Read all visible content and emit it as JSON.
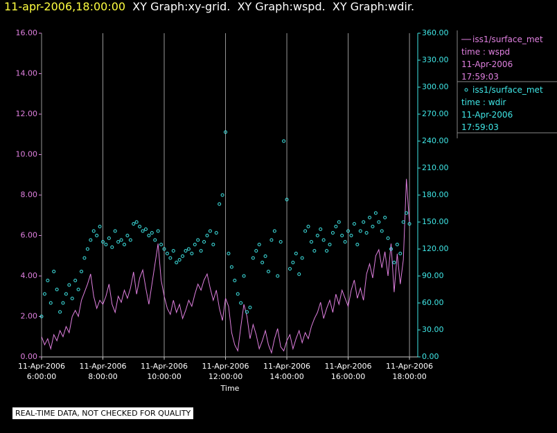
{
  "chart_data": {
    "type": "line",
    "title": "11-apr-2006,18:00:00",
    "subtitle": "XY Graph:xy-grid.  XY Graph:wspd.  XY Graph:wdir.",
    "x_label": "Time",
    "note": "REAL-TIME DATA, NOT CHECKED FOR QUALITY",
    "grid": true,
    "xlim": [
      6,
      18.27
    ],
    "xticks": [
      {
        "value": 6,
        "label": "11-Apr-2006\n6:00:00"
      },
      {
        "value": 8,
        "label": "11-Apr-2006\n8:00:00"
      },
      {
        "value": 10,
        "label": "11-Apr-2006\n10:00:00"
      },
      {
        "value": 12,
        "label": "11-Apr-2006\n12:00:00"
      },
      {
        "value": 14,
        "label": "11-Apr-2006\n14:00:00"
      },
      {
        "value": 16,
        "label": "11-Apr-2006\n16:00:00"
      },
      {
        "value": 18,
        "label": "11-Apr-2006\n18:00:00"
      }
    ],
    "ylim": [
      0,
      16
    ],
    "yticks": [
      {
        "value": 0,
        "label": "0.00"
      },
      {
        "value": 2,
        "label": "2.00"
      },
      {
        "value": 4,
        "label": "4.00"
      },
      {
        "value": 6,
        "label": "6.00"
      },
      {
        "value": 8,
        "label": "8.00"
      },
      {
        "value": 10,
        "label": "10.00"
      },
      {
        "value": 12,
        "label": "12.00"
      },
      {
        "value": 14,
        "label": "14.00"
      },
      {
        "value": 16,
        "label": "16.00"
      }
    ],
    "y2lim": [
      0,
      360
    ],
    "y2ticks": [
      {
        "value": 0,
        "label": "0.00"
      },
      {
        "value": 30,
        "label": "30.00"
      },
      {
        "value": 60,
        "label": "60.00"
      },
      {
        "value": 90,
        "label": "90.00"
      },
      {
        "value": 120,
        "label": "120.00"
      },
      {
        "value": 150,
        "label": "150.00"
      },
      {
        "value": 180,
        "label": "180.00"
      },
      {
        "value": 210,
        "label": "210.00"
      },
      {
        "value": 240,
        "label": "240.00"
      },
      {
        "value": 270,
        "label": "270.00"
      },
      {
        "value": 300,
        "label": "300.00"
      },
      {
        "value": 330,
        "label": "330.00"
      },
      {
        "value": 360,
        "label": "360.00"
      }
    ],
    "x": [
      6.0,
      6.1,
      6.2,
      6.3,
      6.4,
      6.5,
      6.6,
      6.7,
      6.8,
      6.9,
      7.0,
      7.1,
      7.2,
      7.3,
      7.4,
      7.5,
      7.6,
      7.7,
      7.8,
      7.9,
      8.0,
      8.1,
      8.2,
      8.3,
      8.4,
      8.5,
      8.6,
      8.7,
      8.8,
      8.9,
      9.0,
      9.1,
      9.2,
      9.3,
      9.4,
      9.5,
      9.6,
      9.7,
      9.8,
      9.9,
      10.0,
      10.1,
      10.2,
      10.3,
      10.4,
      10.5,
      10.6,
      10.7,
      10.8,
      10.9,
      11.0,
      11.1,
      11.2,
      11.3,
      11.4,
      11.5,
      11.6,
      11.7,
      11.8,
      11.9,
      12.0,
      12.1,
      12.2,
      12.3,
      12.4,
      12.5,
      12.6,
      12.7,
      12.8,
      12.9,
      13.0,
      13.1,
      13.2,
      13.3,
      13.4,
      13.5,
      13.6,
      13.7,
      13.8,
      13.9,
      14.0,
      14.1,
      14.2,
      14.3,
      14.4,
      14.5,
      14.6,
      14.7,
      14.8,
      14.9,
      15.0,
      15.1,
      15.2,
      15.3,
      15.4,
      15.5,
      15.6,
      15.7,
      15.8,
      15.9,
      16.0,
      16.1,
      16.2,
      16.3,
      16.4,
      16.5,
      16.6,
      16.7,
      16.8,
      16.9,
      17.0,
      17.1,
      17.2,
      17.3,
      17.4,
      17.5,
      17.6,
      17.7,
      17.8,
      17.9,
      18.0
    ],
    "series": [
      {
        "name": "iss1/surface_met",
        "legend_text": [
          "time : wspd",
          "11-Apr-2006",
          "17:59:03"
        ],
        "type": "line",
        "color": "#e080e0",
        "values": [
          1.0,
          0.6,
          0.9,
          0.4,
          1.1,
          0.8,
          1.3,
          1.0,
          1.5,
          1.2,
          2.0,
          2.3,
          2.0,
          2.8,
          3.2,
          3.6,
          4.1,
          3.0,
          2.4,
          2.8,
          2.6,
          3.0,
          3.6,
          2.6,
          2.2,
          3.0,
          2.7,
          3.3,
          2.9,
          3.4,
          4.2,
          3.1,
          3.9,
          4.3,
          3.4,
          2.6,
          3.6,
          4.6,
          5.6,
          3.8,
          3.0,
          2.4,
          2.1,
          2.8,
          2.2,
          2.6,
          1.9,
          2.3,
          2.8,
          2.5,
          3.1,
          3.6,
          3.3,
          3.8,
          4.1,
          3.4,
          2.8,
          3.3,
          2.4,
          1.8,
          2.9,
          2.5,
          1.2,
          0.6,
          0.3,
          1.5,
          2.6,
          2.0,
          0.9,
          1.6,
          1.1,
          0.4,
          0.8,
          1.3,
          0.6,
          0.2,
          0.9,
          1.4,
          0.5,
          0.3,
          0.8,
          1.1,
          0.4,
          0.9,
          1.3,
          0.7,
          1.2,
          0.9,
          1.5,
          1.9,
          2.2,
          2.7,
          1.9,
          2.4,
          2.8,
          2.2,
          3.1,
          2.6,
          3.3,
          2.9,
          2.5,
          3.3,
          3.8,
          2.9,
          3.4,
          2.8,
          4.1,
          4.6,
          3.9,
          5.0,
          5.3,
          4.4,
          5.2,
          4.0,
          5.6,
          3.2,
          5.1,
          3.6,
          4.8,
          8.8,
          6.6
        ]
      },
      {
        "name": "iss1/surface_met",
        "legend_text": [
          "time : wdir",
          "11-Apr-2006",
          "17:59:03"
        ],
        "type": "scatter",
        "axis": "y2",
        "color": "#40e8e8",
        "values": [
          45,
          70,
          85,
          60,
          95,
          75,
          50,
          60,
          70,
          80,
          65,
          85,
          75,
          95,
          110,
          120,
          130,
          140,
          135,
          145,
          128,
          125,
          132,
          122,
          140,
          128,
          130,
          125,
          135,
          130,
          148,
          150,
          145,
          140,
          142,
          135,
          138,
          130,
          140,
          125,
          120,
          115,
          110,
          118,
          105,
          108,
          112,
          118,
          120,
          115,
          125,
          130,
          118,
          128,
          135,
          140,
          125,
          138,
          170,
          180,
          250,
          115,
          100,
          85,
          70,
          60,
          90,
          50,
          55,
          110,
          118,
          125,
          105,
          112,
          95,
          130,
          140,
          90,
          128,
          240,
          175,
          98,
          105,
          115,
          92,
          110,
          140,
          145,
          128,
          118,
          135,
          142,
          130,
          118,
          125,
          138,
          145,
          150,
          135,
          128,
          140,
          135,
          148,
          125,
          140,
          150,
          138,
          155,
          145,
          160,
          150,
          140,
          155,
          132,
          120,
          105,
          125,
          115,
          150,
          160,
          148
        ]
      }
    ]
  }
}
